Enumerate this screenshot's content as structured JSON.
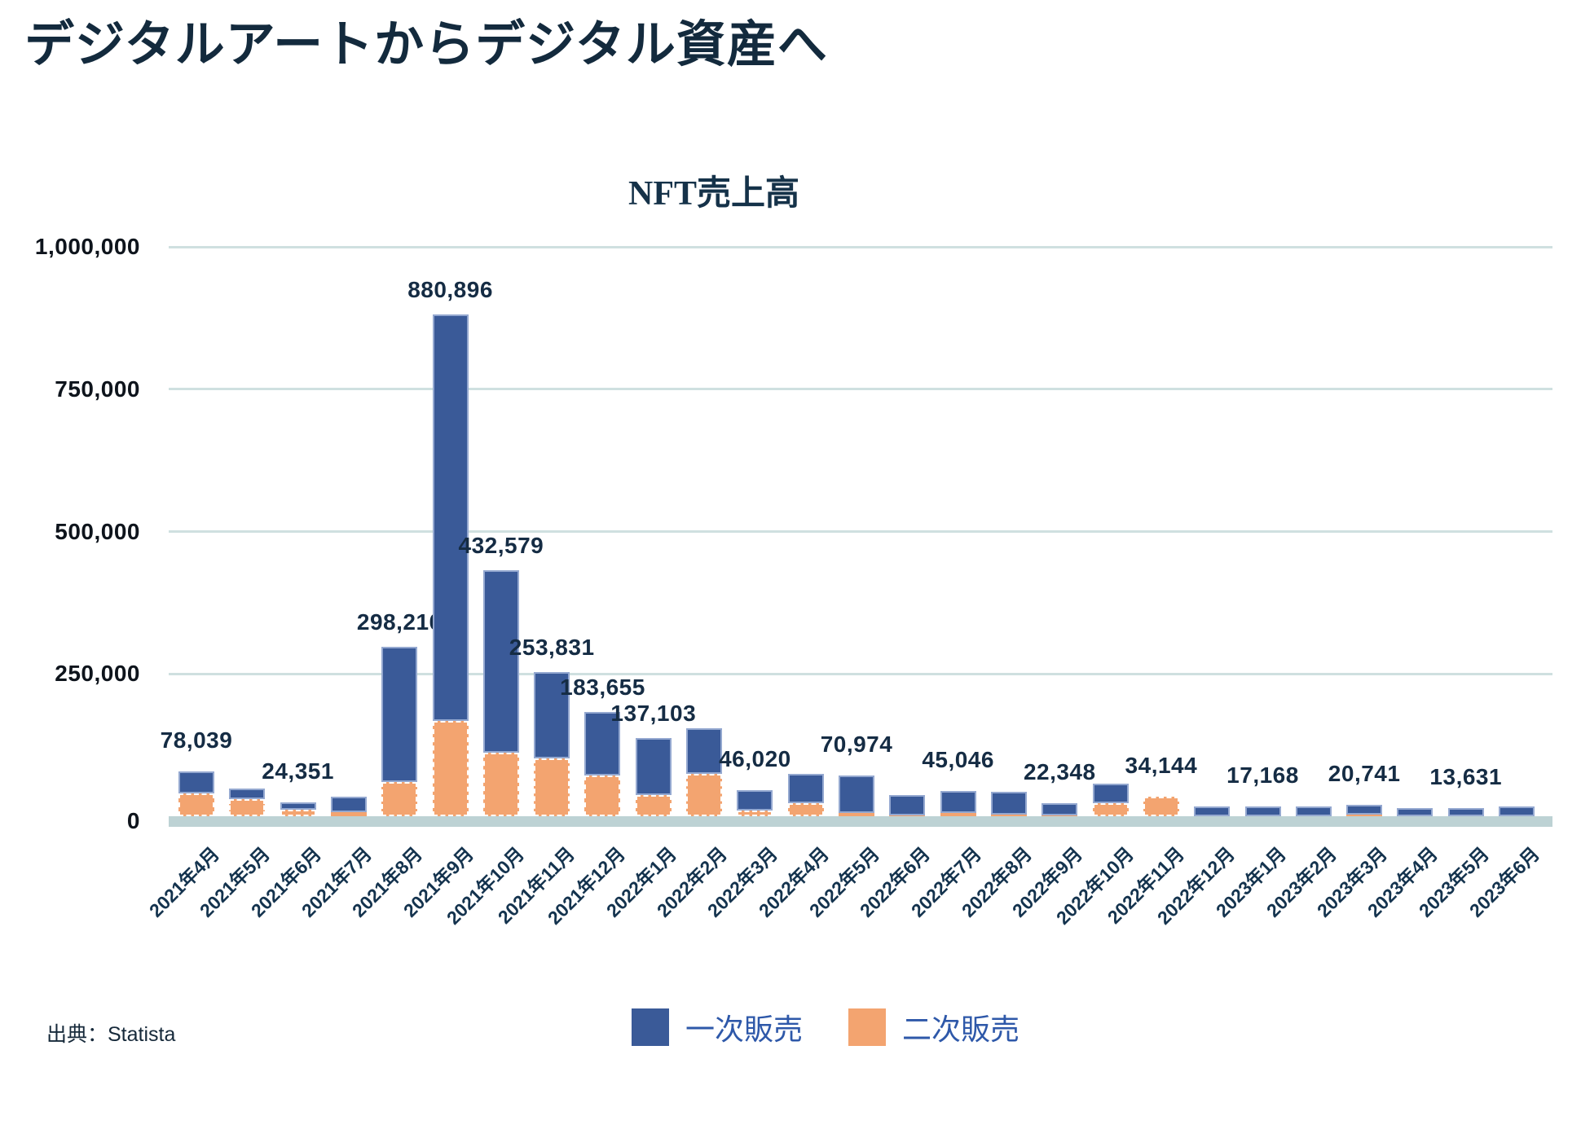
{
  "page": {
    "title": "デジタルアートからデジタル資産へ",
    "source": "出典：Statista"
  },
  "chart": {
    "title": "NFT売上高",
    "y_axis": {
      "tick_labels": [
        "1,000,000",
        "750,000",
        "500,000",
        "250,000",
        "0"
      ],
      "tick_values": [
        1000000,
        750000,
        500000,
        250000,
        0
      ]
    },
    "legend": [
      {
        "label": "一次販売",
        "color": "#3a5a98"
      },
      {
        "label": "二次販売",
        "color": "#f3a470"
      }
    ]
  },
  "chart_data": {
    "type": "bar",
    "stacked": true,
    "title": "NFT売上高",
    "xlabel": "",
    "ylabel": "",
    "ylim": [
      0,
      1000000
    ],
    "y_ticks": [
      0,
      250000,
      500000,
      750000,
      1000000
    ],
    "grid": true,
    "legend_position": "bottom",
    "categories": [
      "2021年4月",
      "2021年5月",
      "2021年6月",
      "2021年7月",
      "2021年8月",
      "2021年9月",
      "2021年10月",
      "2021年11月",
      "2021年12月",
      "2022年1月",
      "2022年2月",
      "2022年3月",
      "2022年4月",
      "2022年5月",
      "2022年6月",
      "2022年7月",
      "2022年8月",
      "2022年9月",
      "2022年10月",
      "2022年11月",
      "2022年12月",
      "2023年1月",
      "2023年2月",
      "2023年3月",
      "2023年4月",
      "2023年5月",
      "2023年6月"
    ],
    "series": [
      {
        "name": "一次販売",
        "color": "#3a5a98",
        "stack_position": "top",
        "values": [
          38039,
          18000,
          13351,
          27000,
          238210,
          713896,
          321579,
          151831,
          112655,
          100103,
          80000,
          36020,
          52000,
          64974,
          35000,
          39046,
          40000,
          21348,
          34000,
          0,
          17000,
          17168,
          17000,
          17741,
          14000,
          13631,
          17000
        ]
      },
      {
        "name": "二次販売",
        "color": "#f3a470",
        "stack_position": "bottom",
        "values": [
          40000,
          30000,
          11000,
          7000,
          60000,
          167000,
          111000,
          102000,
          71000,
          37000,
          75000,
          10000,
          23000,
          6000,
          2000,
          6000,
          3000,
          1000,
          23000,
          34144,
          0,
          0,
          0,
          3000,
          0,
          0,
          0
        ]
      }
    ],
    "total_labels": [
      "78,039",
      null,
      "24,351",
      null,
      "298,210",
      "880,896",
      "432,579",
      "253,831",
      "183,655",
      "137,103",
      null,
      "46,020",
      null,
      "70,974",
      null,
      "45,046",
      null,
      "22,348",
      null,
      "34,144",
      null,
      "17,168",
      null,
      "20,741",
      null,
      "13,631",
      null
    ]
  },
  "colors": {
    "primary_bar": "#3a5a98",
    "primary_bar_border": "#94a8d0",
    "secondary_bar": "#f3a470",
    "secondary_bar_border": "#ffffff",
    "gridline": "#cfe0e0",
    "baseline_band": "#bdd2d4",
    "title_text": "#132a3d",
    "tick_text": "#0e141c",
    "value_label_text": "#152c44",
    "x_label_text": "#14334e",
    "legend_text": "#2e58a9"
  }
}
